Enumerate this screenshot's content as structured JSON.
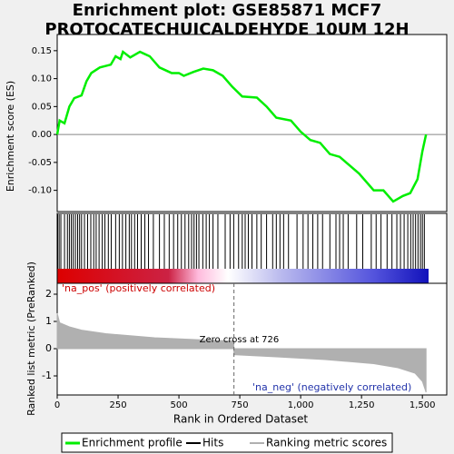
{
  "chart_data": {
    "type": "gsea",
    "title_lines": [
      "Enrichment plot: GSE85871 MCF7",
      "PROTOCATECHUICALDEHYDE 10UM 12H"
    ],
    "xlabel": "Rank in Ordered Dataset",
    "xlim": [
      0,
      1600
    ],
    "xticks": [
      0,
      250,
      500,
      750,
      {
        "value": 1000,
        "label": "1,000"
      },
      {
        "value": 1250,
        "label": "1,250"
      },
      {
        "value": 1500,
        "label": "1,500"
      }
    ],
    "es": {
      "ylabel": "Enrichment score (ES)",
      "color": "#00ee00",
      "ylim": [
        -0.138,
        0.179
      ],
      "yticks": [
        0.15,
        {
          "value": 0.1,
          "label": "0.10"
        },
        0.05,
        {
          "value": 0,
          "label": "0.00"
        },
        -0.05,
        {
          "value": -0.1,
          "label": "-0.10"
        }
      ],
      "x": [
        0,
        10,
        30,
        50,
        70,
        100,
        120,
        140,
        175,
        220,
        240,
        260,
        270,
        300,
        340,
        380,
        420,
        470,
        500,
        520,
        560,
        600,
        640,
        680,
        720,
        760,
        820,
        860,
        900,
        960,
        1000,
        1040,
        1080,
        1120,
        1160,
        1200,
        1240,
        1300,
        1340,
        1380,
        1420,
        1450,
        1480,
        1500,
        1515
      ],
      "values": [
        0.0,
        0.025,
        0.02,
        0.05,
        0.065,
        0.07,
        0.095,
        0.11,
        0.12,
        0.125,
        0.14,
        0.135,
        0.148,
        0.138,
        0.148,
        0.14,
        0.12,
        0.11,
        0.11,
        0.105,
        0.112,
        0.118,
        0.115,
        0.105,
        0.085,
        0.068,
        0.066,
        0.05,
        0.03,
        0.025,
        0.005,
        -0.01,
        -0.015,
        -0.035,
        -0.04,
        -0.055,
        -0.07,
        -0.1,
        -0.1,
        -0.12,
        -0.11,
        -0.105,
        -0.08,
        -0.03,
        0.0
      ]
    },
    "hits": [
      2,
      8,
      15,
      30,
      42,
      50,
      58,
      66,
      75,
      84,
      92,
      100,
      112,
      125,
      138,
      150,
      160,
      172,
      185,
      196,
      210,
      222,
      240,
      255,
      268,
      282,
      296,
      305,
      318,
      330,
      345,
      360,
      375,
      395,
      420,
      440,
      460,
      478,
      495,
      510,
      525,
      540,
      552,
      562,
      572,
      582,
      598,
      612,
      625,
      640,
      660,
      690,
      710,
      725,
      745,
      760,
      772,
      785,
      800,
      820,
      838,
      860,
      885,
      900,
      915,
      930,
      950,
      985,
      1010,
      1030,
      1050,
      1070,
      1090,
      1120,
      1145,
      1160,
      1175,
      1195,
      1230,
      1255,
      1290,
      1310,
      1330,
      1355,
      1375,
      1395,
      1410,
      1425,
      1440,
      1452,
      1462,
      1472,
      1482,
      1492,
      1500,
      1508
    ],
    "ranking": {
      "ylabel": "Ranked list metric (PreRanked)",
      "color": "#b0b0b0",
      "ylim": [
        -1.7,
        2.4
      ],
      "yticks": [
        2,
        1,
        0,
        -1
      ],
      "x": [
        0,
        10,
        50,
        100,
        200,
        400,
        600,
        725,
        726,
        900,
        1100,
        1300,
        1400,
        1470,
        1500,
        1515
      ],
      "values": [
        1.3,
        0.95,
        0.8,
        0.68,
        0.55,
        0.4,
        0.32,
        0.28,
        -0.22,
        -0.3,
        -0.4,
        -0.55,
        -0.7,
        -0.9,
        -1.2,
        -1.6
      ],
      "zero_cross": 726,
      "zero_cross_label": "Zero cross at 726",
      "pos_label": "'na_pos' (positively correlated)",
      "neg_label": "'na_neg' (negatively correlated)"
    },
    "legend": [
      "Enrichment profile",
      "Hits",
      "Ranking metric scores"
    ]
  }
}
